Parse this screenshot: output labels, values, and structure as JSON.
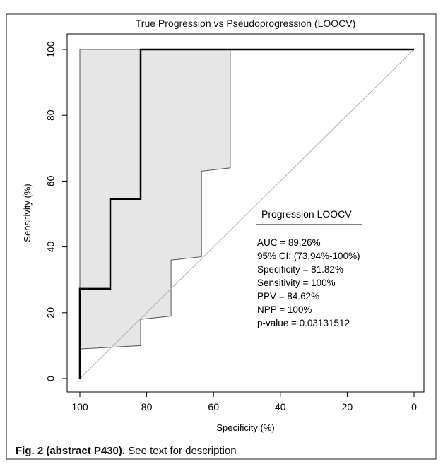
{
  "caption": {
    "label": "Fig. 2 (abstract P430).",
    "text": "See text for description"
  },
  "colors": {
    "frame": "#000000",
    "ci_fill": "#e6e6e6",
    "ci_stroke": "#555555",
    "roc_line": "#000000",
    "diagonal": "#b0b0b0"
  },
  "chart_data": {
    "type": "line",
    "title": "True Progression vs Pseudoprogression  (LOOCV)",
    "xlabel": "Specificity (%)",
    "ylabel": "Sensitivity (%)",
    "xlim": [
      100,
      0
    ],
    "ylim": [
      0,
      100
    ],
    "x_reversed": true,
    "xticks": [
      "100",
      "80",
      "60",
      "40",
      "20",
      "0"
    ],
    "xtick_values": [
      100,
      80,
      60,
      40,
      20,
      0
    ],
    "yticks": [
      "0",
      "20",
      "40",
      "60",
      "80",
      "100"
    ],
    "ytick_values": [
      0,
      20,
      40,
      60,
      80,
      100
    ],
    "grid": false,
    "series": [
      {
        "name": "",
        "points": [
          [
            100,
            0
          ],
          [
            100,
            27.27
          ],
          [
            90.91,
            27.27
          ],
          [
            90.91,
            54.55
          ],
          [
            81.82,
            54.55
          ],
          [
            81.82,
            100
          ],
          [
            0,
            100
          ]
        ]
      }
    ],
    "ci_band": {
      "upper": [
        [
          100,
          100
        ],
        [
          55,
          100
        ]
      ],
      "lower": [
        [
          55,
          64
        ],
        [
          63.6,
          63
        ],
        [
          63.6,
          37
        ],
        [
          72.7,
          36
        ],
        [
          72.7,
          19
        ],
        [
          81.82,
          18
        ],
        [
          81.82,
          10
        ],
        [
          100,
          9
        ],
        [
          100,
          0
        ]
      ]
    },
    "reference_line": [
      [
        100,
        0
      ],
      [
        0,
        100
      ]
    ],
    "legend": {
      "title": "Progression LOOCV",
      "lines": [
        "AUC = 89.26%",
        "95% CI: (73.94%-100%)",
        "Specificity =  81.82%",
        "Sensitivity = 100%",
        "PPV = 84.62%",
        "NPP = 100%",
        "p-value =  0.03131512"
      ],
      "position": "center-right"
    }
  }
}
